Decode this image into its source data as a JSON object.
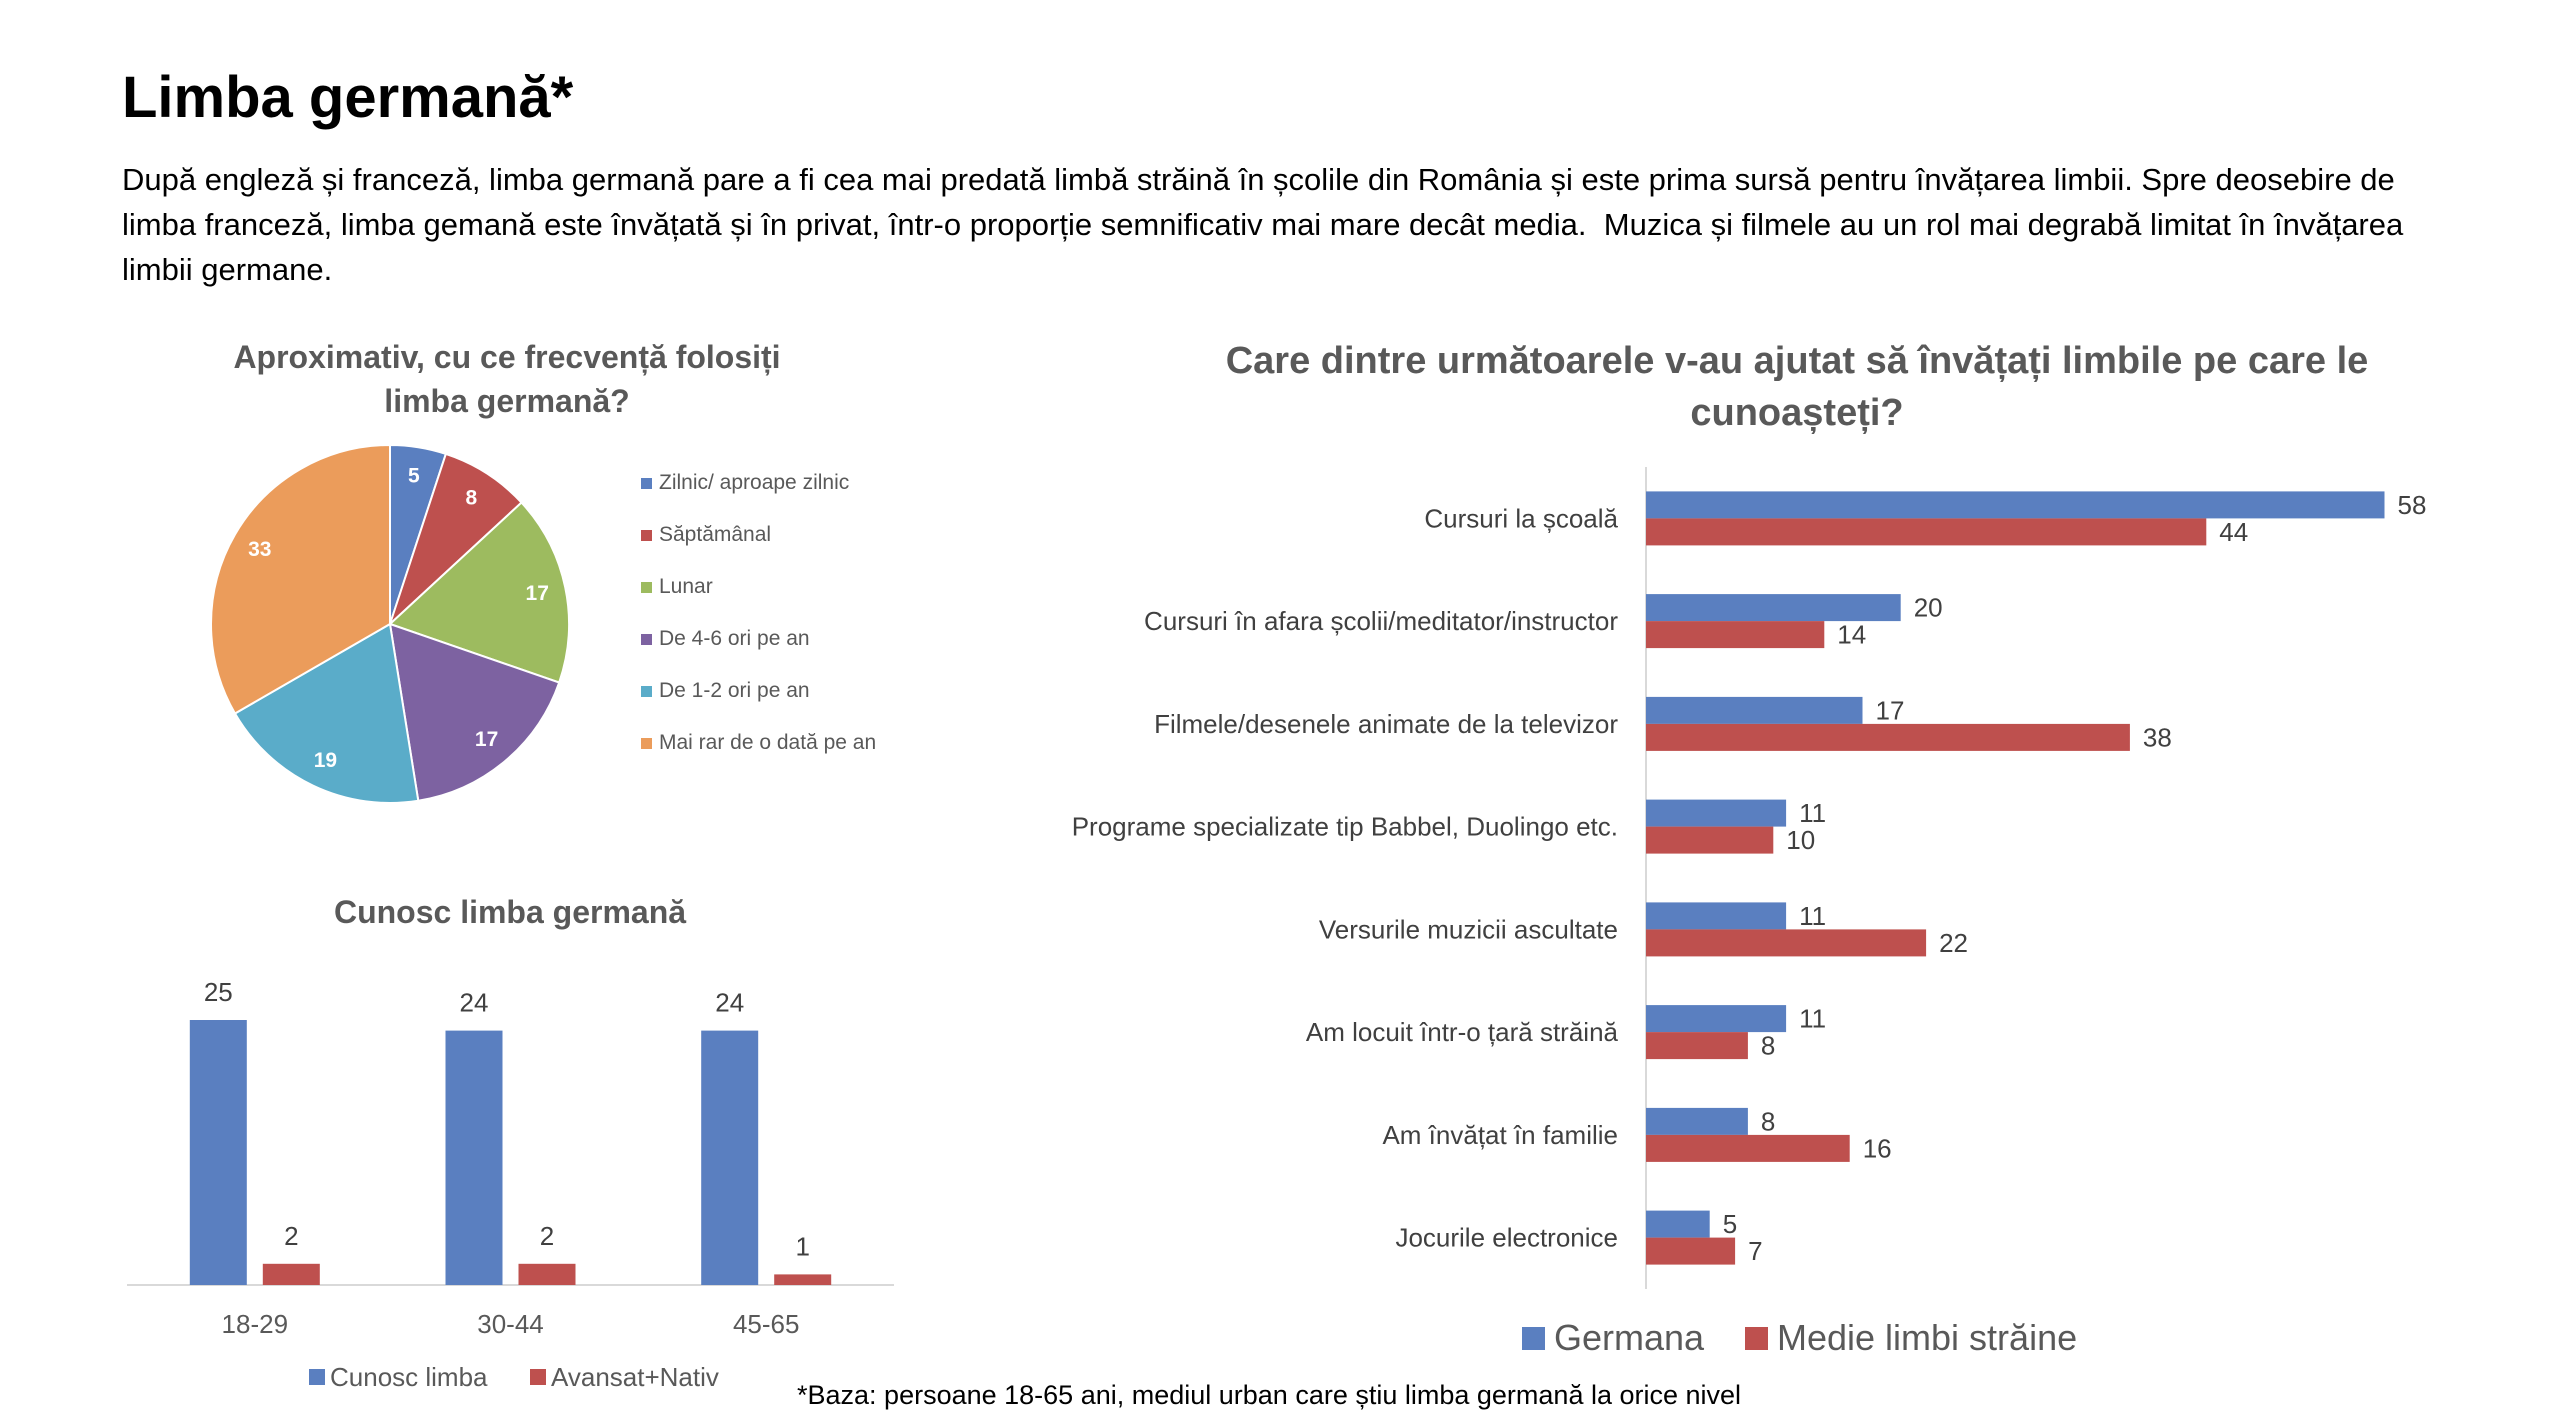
{
  "page": {
    "title": "Limba germană*",
    "intro": "După engleză și franceză, limba germană pare a fi cea mai predată limbă străină în școlile din România și este prima sursă pentru învățarea limbii. Spre deosebire de limba franceză, limba gemană este învățată și în privat, într-o proporție semnificativ mai mare decât media.  Muzica și filmele au un rol mai degrabă limitat în învățarea limbii germane.",
    "footnote": "*Baza: persoane 18-65 ani, mediul urban care știu limba germană la orice nivel"
  },
  "chart_data": [
    {
      "type": "pie",
      "title": "Aproximativ, cu ce frecvență folosiți limba germană?",
      "categories": [
        "Zilnic/ aproape zilnic",
        "Săptămânal",
        "Lunar",
        "De 4-6 ori pe an",
        "De 1-2 ori pe an",
        "Mai rar de o dată pe an"
      ],
      "values": [
        5,
        8,
        17,
        17,
        19,
        33
      ],
      "colors": [
        "#5A7FC0",
        "#BE504E",
        "#9DBB5F",
        "#7D62A1",
        "#5AACC9",
        "#EB9C5B"
      ],
      "legend": "right"
    },
    {
      "type": "bar",
      "title": "Cunosc limba germană",
      "categories": [
        "18-29",
        "30-44",
        "45-65"
      ],
      "series": [
        {
          "name": "Cunosc limba",
          "values": [
            25,
            24,
            24
          ],
          "color": "#5A7FC0"
        },
        {
          "name": "Avansat+Nativ",
          "values": [
            2,
            2,
            1
          ],
          "color": "#BE504E"
        }
      ],
      "ylim": [
        0,
        30
      ],
      "grid": false,
      "legend": "bottom"
    },
    {
      "type": "bar",
      "orientation": "horizontal",
      "title": "Care dintre următoarele v-au ajutat să învățați limbile pe care le cunoașteți?",
      "categories": [
        "Cursuri la școală",
        "Cursuri în afara școlii/meditator/instructor",
        "Filmele/desenele animate de la televizor",
        "Programe specializate tip Babbel, Duolingo etc.",
        "Versurile muzicii ascultate",
        "Am locuit într-o țară străină",
        "Am învățat în familie",
        "Jocurile electronice"
      ],
      "series": [
        {
          "name": "Germana",
          "values": [
            58,
            20,
            17,
            11,
            11,
            11,
            8,
            5
          ],
          "color": "#5A7FC0"
        },
        {
          "name": "Medie limbi străine",
          "values": [
            44,
            14,
            38,
            10,
            22,
            8,
            16,
            7
          ],
          "color": "#BE504E"
        }
      ],
      "xlim": [
        0,
        60
      ],
      "grid": false,
      "legend": "bottom"
    }
  ]
}
